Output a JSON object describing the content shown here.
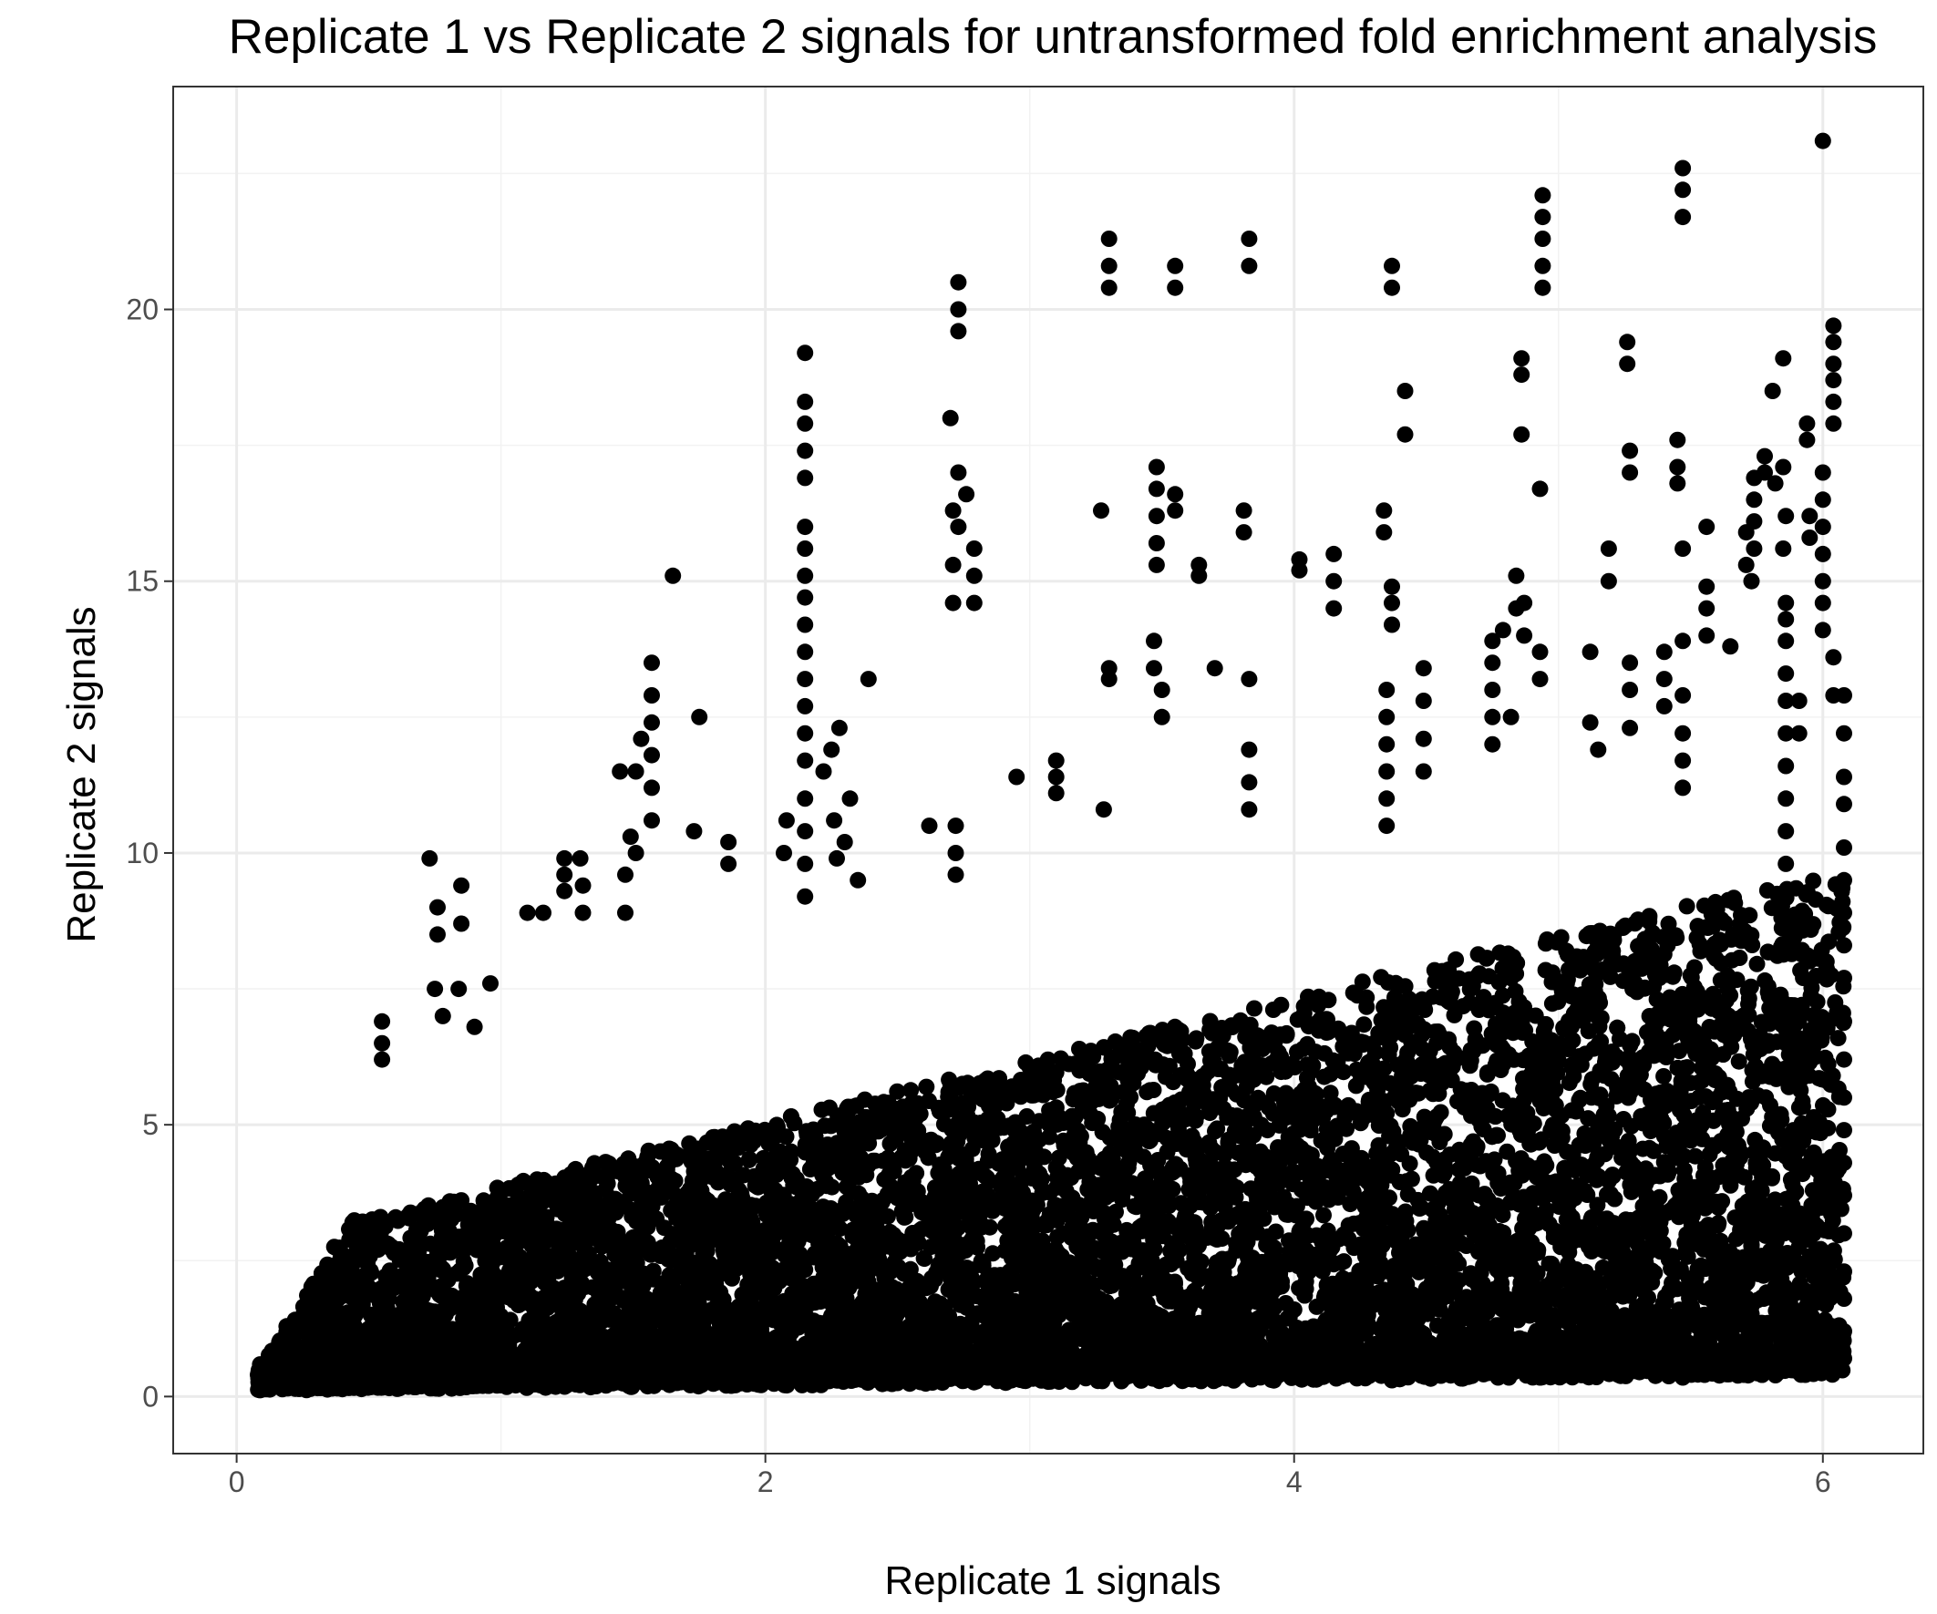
{
  "chart_data": {
    "type": "scatter",
    "title": "Replicate 1 vs Replicate 2 signals for untransformed fold enrichment analysis",
    "xlabel": "Replicate 1 signals",
    "ylabel": "Replicate 2 signals",
    "xlim": [
      -0.24,
      6.38
    ],
    "ylim": [
      -1.05,
      24.1
    ],
    "x_ticks": [
      0,
      2,
      4,
      6
    ],
    "y_ticks": [
      0,
      5,
      10,
      15,
      20
    ],
    "grid": true,
    "point_color": "#000000",
    "series": [
      {
        "points": [
          [
            6.0,
            23.1
          ],
          [
            5.47,
            22.6
          ],
          [
            5.47,
            22.2
          ],
          [
            5.47,
            21.7
          ],
          [
            4.94,
            22.1
          ],
          [
            4.94,
            21.7
          ],
          [
            4.94,
            21.3
          ],
          [
            4.94,
            20.8
          ],
          [
            4.94,
            20.4
          ],
          [
            3.3,
            21.3
          ],
          [
            3.3,
            20.8
          ],
          [
            3.3,
            20.4
          ],
          [
            3.55,
            20.8
          ],
          [
            3.55,
            20.4
          ],
          [
            3.83,
            21.3
          ],
          [
            3.83,
            20.8
          ],
          [
            4.37,
            20.8
          ],
          [
            4.37,
            20.4
          ],
          [
            2.73,
            20.5
          ],
          [
            2.73,
            20.0
          ],
          [
            2.73,
            19.6
          ],
          [
            2.15,
            19.2
          ],
          [
            2.15,
            18.3
          ],
          [
            2.15,
            17.9
          ],
          [
            2.15,
            17.4
          ],
          [
            2.15,
            16.9
          ],
          [
            2.15,
            16.0
          ],
          [
            2.15,
            15.6
          ],
          [
            2.15,
            15.1
          ],
          [
            2.15,
            14.7
          ],
          [
            2.15,
            14.2
          ],
          [
            2.15,
            13.7
          ],
          [
            2.15,
            13.2
          ],
          [
            2.15,
            12.7
          ],
          [
            2.15,
            12.2
          ],
          [
            2.15,
            11.7
          ],
          [
            2.15,
            11.0
          ],
          [
            2.15,
            10.4
          ],
          [
            2.15,
            9.8
          ],
          [
            2.15,
            9.2
          ],
          [
            2.7,
            18.0
          ],
          [
            2.73,
            17.0
          ],
          [
            2.76,
            16.6
          ],
          [
            2.71,
            16.3
          ],
          [
            2.79,
            15.6
          ],
          [
            2.71,
            15.3
          ],
          [
            2.79,
            15.1
          ],
          [
            2.71,
            14.6
          ],
          [
            2.79,
            14.6
          ],
          [
            2.73,
            16.0
          ],
          [
            5.26,
            19.4
          ],
          [
            5.26,
            19.0
          ],
          [
            5.85,
            19.1
          ],
          [
            5.81,
            18.5
          ],
          [
            4.86,
            19.1
          ],
          [
            4.86,
            18.8
          ],
          [
            4.86,
            17.7
          ],
          [
            4.42,
            18.5
          ],
          [
            4.42,
            17.7
          ],
          [
            4.93,
            16.7
          ],
          [
            5.27,
            17.4
          ],
          [
            5.27,
            17.0
          ],
          [
            5.45,
            17.6
          ],
          [
            5.45,
            17.1
          ],
          [
            5.45,
            16.8
          ],
          [
            5.47,
            15.6
          ],
          [
            5.47,
            13.9
          ],
          [
            5.94,
            17.9
          ],
          [
            5.94,
            17.6
          ],
          [
            6.04,
            19.7
          ],
          [
            6.04,
            19.4
          ],
          [
            6.04,
            19.0
          ],
          [
            6.04,
            18.7
          ],
          [
            6.04,
            18.3
          ],
          [
            6.04,
            17.9
          ],
          [
            6.0,
            17.0
          ],
          [
            6.0,
            16.5
          ],
          [
            6.0,
            16.0
          ],
          [
            6.0,
            15.5
          ],
          [
            6.0,
            15.0
          ],
          [
            6.0,
            14.6
          ],
          [
            6.0,
            14.1
          ],
          [
            6.04,
            13.6
          ],
          [
            6.04,
            12.9
          ],
          [
            5.19,
            15.6
          ],
          [
            5.19,
            15.0
          ],
          [
            4.34,
            16.3
          ],
          [
            4.34,
            15.9
          ],
          [
            3.81,
            16.3
          ],
          [
            3.81,
            15.9
          ],
          [
            3.48,
            17.1
          ],
          [
            3.48,
            16.7
          ],
          [
            3.48,
            16.2
          ],
          [
            3.48,
            15.7
          ],
          [
            3.48,
            15.3
          ],
          [
            3.55,
            16.6
          ],
          [
            3.55,
            16.3
          ],
          [
            3.27,
            16.3
          ],
          [
            3.64,
            15.3
          ],
          [
            3.64,
            15.1
          ],
          [
            4.02,
            15.4
          ],
          [
            4.02,
            15.2
          ],
          [
            4.15,
            15.5
          ],
          [
            4.15,
            15.0
          ],
          [
            4.15,
            14.5
          ],
          [
            4.37,
            14.9
          ],
          [
            4.37,
            14.6
          ],
          [
            4.37,
            14.2
          ],
          [
            4.35,
            13.0
          ],
          [
            4.35,
            12.5
          ],
          [
            4.35,
            12.0
          ],
          [
            4.35,
            11.5
          ],
          [
            4.35,
            11.0
          ],
          [
            4.35,
            10.5
          ],
          [
            1.65,
            15.1
          ],
          [
            1.57,
            13.5
          ],
          [
            1.57,
            12.9
          ],
          [
            1.57,
            12.4
          ],
          [
            1.57,
            11.8
          ],
          [
            1.57,
            11.2
          ],
          [
            1.57,
            10.6
          ],
          [
            1.53,
            12.1
          ],
          [
            1.51,
            11.5
          ],
          [
            1.45,
            11.5
          ],
          [
            1.75,
            12.5
          ],
          [
            2.28,
            12.3
          ],
          [
            2.25,
            11.9
          ],
          [
            2.22,
            11.5
          ],
          [
            2.39,
            13.2
          ],
          [
            2.32,
            11.0
          ],
          [
            2.26,
            10.6
          ],
          [
            2.3,
            10.2
          ],
          [
            2.27,
            9.9
          ],
          [
            2.35,
            9.5
          ],
          [
            3.3,
            13.4
          ],
          [
            3.3,
            13.2
          ],
          [
            3.47,
            13.9
          ],
          [
            3.47,
            13.4
          ],
          [
            3.5,
            13.0
          ],
          [
            3.5,
            12.5
          ],
          [
            3.7,
            13.4
          ],
          [
            3.83,
            13.2
          ],
          [
            3.83,
            11.9
          ],
          [
            3.83,
            11.3
          ],
          [
            3.83,
            10.8
          ],
          [
            3.1,
            11.7
          ],
          [
            3.1,
            11.4
          ],
          [
            3.1,
            11.1
          ],
          [
            2.95,
            11.4
          ],
          [
            3.28,
            10.8
          ],
          [
            2.72,
            10.5
          ],
          [
            2.72,
            10.0
          ],
          [
            2.72,
            9.6
          ],
          [
            2.62,
            10.5
          ],
          [
            2.08,
            10.6
          ],
          [
            2.07,
            10.0
          ],
          [
            1.73,
            10.4
          ],
          [
            1.86,
            10.2
          ],
          [
            1.86,
            9.8
          ],
          [
            0.73,
            9.9
          ],
          [
            0.85,
            9.4
          ],
          [
            0.85,
            8.7
          ],
          [
            0.76,
            9.0
          ],
          [
            0.76,
            8.5
          ],
          [
            1.24,
            9.9
          ],
          [
            1.24,
            9.6
          ],
          [
            1.24,
            9.3
          ],
          [
            1.3,
            9.9
          ],
          [
            1.31,
            9.4
          ],
          [
            1.1,
            8.9
          ],
          [
            1.16,
            8.9
          ],
          [
            1.31,
            8.9
          ],
          [
            1.47,
            9.6
          ],
          [
            1.47,
            8.9
          ],
          [
            1.49,
            10.3
          ],
          [
            1.51,
            10.0
          ],
          [
            0.96,
            7.6
          ],
          [
            0.9,
            6.8
          ],
          [
            0.55,
            6.9
          ],
          [
            0.55,
            6.5
          ],
          [
            0.55,
            6.2
          ],
          [
            0.75,
            7.5
          ],
          [
            0.78,
            7.0
          ],
          [
            0.84,
            7.5
          ],
          [
            4.49,
            13.4
          ],
          [
            4.49,
            12.8
          ],
          [
            4.49,
            12.1
          ],
          [
            4.49,
            11.5
          ],
          [
            4.75,
            13.9
          ],
          [
            4.75,
            13.5
          ],
          [
            4.75,
            13.0
          ],
          [
            4.75,
            12.5
          ],
          [
            4.75,
            12.0
          ],
          [
            4.79,
            14.1
          ],
          [
            4.82,
            12.5
          ],
          [
            4.84,
            14.5
          ],
          [
            4.84,
            15.1
          ],
          [
            4.87,
            14.6
          ],
          [
            4.87,
            14.0
          ],
          [
            4.93,
            13.7
          ],
          [
            4.93,
            13.2
          ],
          [
            5.12,
            13.7
          ],
          [
            5.12,
            12.4
          ],
          [
            5.15,
            11.9
          ],
          [
            5.27,
            13.5
          ],
          [
            5.27,
            13.0
          ],
          [
            5.27,
            12.3
          ],
          [
            5.4,
            13.7
          ],
          [
            5.4,
            13.2
          ],
          [
            5.4,
            12.7
          ],
          [
            5.47,
            12.9
          ],
          [
            5.47,
            12.2
          ],
          [
            5.47,
            11.7
          ],
          [
            5.47,
            11.2
          ],
          [
            5.56,
            16.0
          ],
          [
            5.56,
            14.9
          ],
          [
            5.56,
            14.5
          ],
          [
            5.56,
            14.0
          ],
          [
            5.65,
            13.8
          ],
          [
            5.73,
            15.0
          ],
          [
            5.71,
            15.9
          ],
          [
            5.71,
            15.3
          ],
          [
            5.74,
            16.9
          ],
          [
            5.74,
            16.5
          ],
          [
            5.74,
            16.1
          ],
          [
            5.74,
            15.6
          ],
          [
            5.78,
            17.3
          ],
          [
            5.78,
            17.0
          ],
          [
            5.82,
            16.8
          ],
          [
            5.86,
            14.6
          ],
          [
            5.86,
            14.3
          ],
          [
            5.86,
            13.9
          ],
          [
            5.86,
            13.3
          ],
          [
            5.86,
            12.8
          ],
          [
            5.86,
            12.2
          ],
          [
            5.86,
            11.6
          ],
          [
            5.86,
            11.0
          ],
          [
            5.86,
            10.4
          ],
          [
            5.86,
            9.8
          ],
          [
            5.85,
            15.6
          ],
          [
            5.85,
            17.1
          ],
          [
            5.86,
            16.2
          ],
          [
            5.91,
            12.8
          ],
          [
            5.91,
            12.2
          ],
          [
            5.95,
            16.2
          ],
          [
            5.95,
            15.8
          ],
          [
            6.08,
            12.9
          ],
          [
            6.08,
            12.2
          ],
          [
            6.08,
            11.4
          ],
          [
            6.08,
            10.9
          ],
          [
            6.08,
            10.1
          ],
          [
            6.08,
            9.5
          ],
          [
            6.08,
            8.9
          ],
          [
            6.08,
            8.3
          ],
          [
            6.08,
            7.7
          ],
          [
            6.08,
            6.9
          ],
          [
            6.08,
            6.2
          ],
          [
            6.08,
            5.5
          ],
          [
            6.08,
            4.9
          ],
          [
            6.08,
            4.3
          ],
          [
            6.08,
            3.7
          ],
          [
            6.08,
            3.0
          ],
          [
            6.08,
            2.3
          ],
          [
            6.08,
            1.8
          ],
          [
            6.08,
            1.2
          ],
          [
            6.08,
            0.7
          ],
          [
            6.05,
            0.6
          ],
          [
            5.77,
            0.4
          ],
          [
            5.59,
            0.5
          ],
          [
            5.47,
            0.35
          ],
          [
            5.2,
            0.5
          ],
          [
            4.93,
            0.35
          ],
          [
            4.37,
            0.3
          ],
          [
            2.16,
            0.25
          ]
        ]
      }
    ]
  }
}
